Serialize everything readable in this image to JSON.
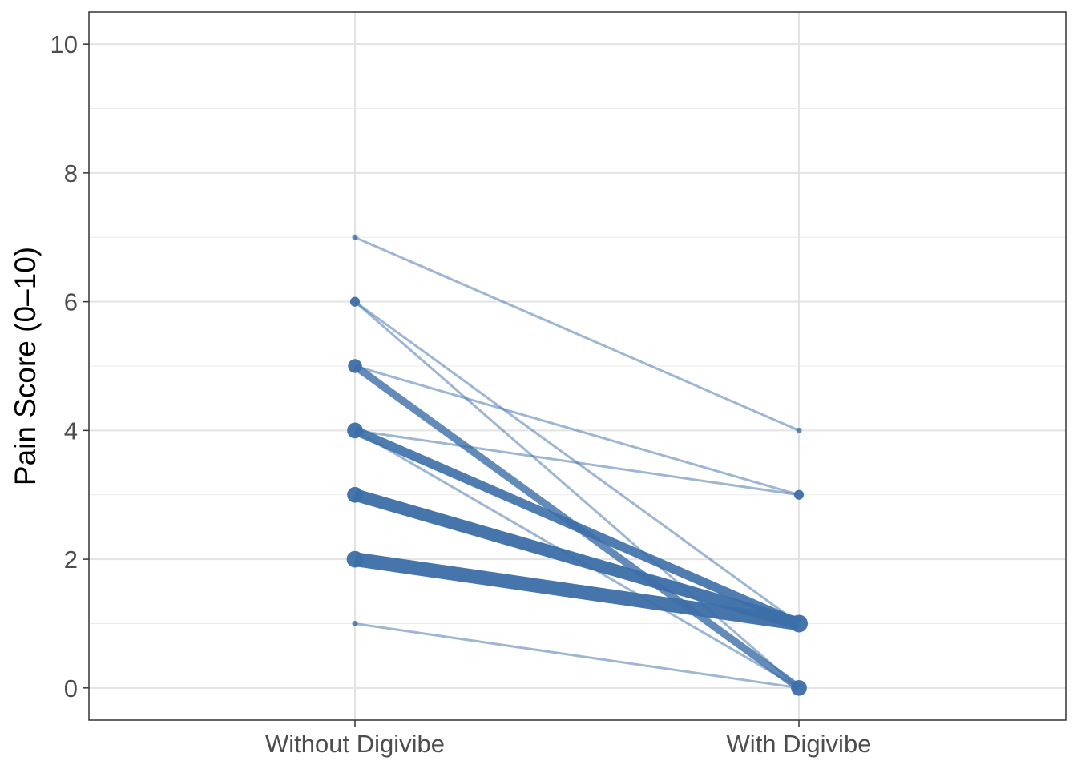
{
  "chart_data": {
    "type": "line",
    "categories": [
      "Without Digivibe",
      "With Digivibe"
    ],
    "ylabel": "Pain Score (0–10)",
    "xlabel": "",
    "ylim": [
      -0.5,
      10.5
    ],
    "yticks": [
      0,
      2,
      4,
      6,
      8,
      10
    ],
    "grid": true,
    "legend": "none",
    "color": "#3c6ea8",
    "pairs": [
      {
        "from": 7,
        "to": 4,
        "count": 1
      },
      {
        "from": 6,
        "to": 1,
        "count": 1
      },
      {
        "from": 6,
        "to": 0,
        "count": 1
      },
      {
        "from": 5,
        "to": 3,
        "count": 1
      },
      {
        "from": 5,
        "to": 0,
        "count": 4
      },
      {
        "from": 4,
        "to": 3,
        "count": 1
      },
      {
        "from": 4,
        "to": 0,
        "count": 1
      },
      {
        "from": 4,
        "to": 1,
        "count": 5
      },
      {
        "from": 3,
        "to": 1,
        "count": 7
      },
      {
        "from": 2,
        "to": 1,
        "count": 8
      },
      {
        "from": 1,
        "to": 0,
        "count": 1
      }
    ]
  }
}
